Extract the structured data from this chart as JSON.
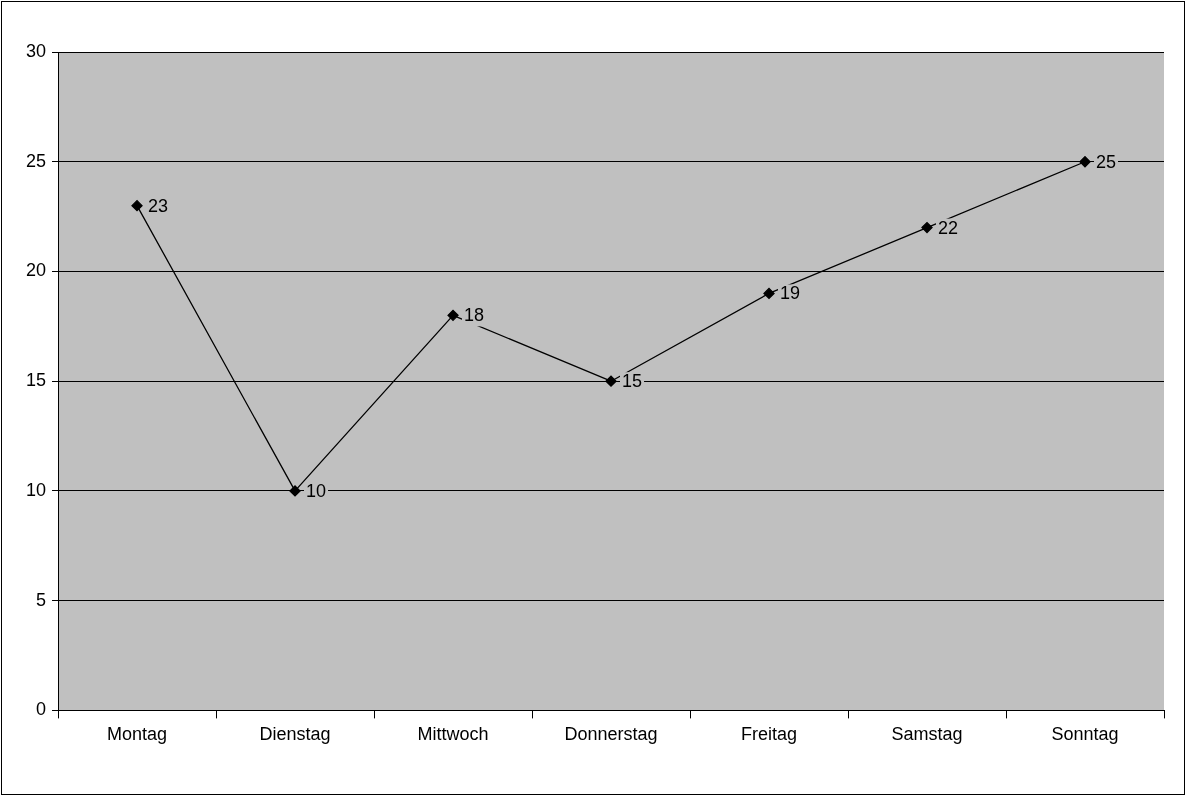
{
  "chart_data": {
    "type": "line",
    "categories": [
      "Montag",
      "Dienstag",
      "Mittwoch",
      "Donnerstag",
      "Freitag",
      "Samstag",
      "Sonntag"
    ],
    "values": [
      23,
      10,
      18,
      15,
      19,
      22,
      25
    ],
    "color": "#000000",
    "ylim": [
      0,
      30
    ],
    "yticks": [
      0,
      5,
      10,
      15,
      20,
      25,
      30
    ],
    "grid": "y",
    "marker": "diamond",
    "line_style": "solid",
    "data_labels": true
  }
}
